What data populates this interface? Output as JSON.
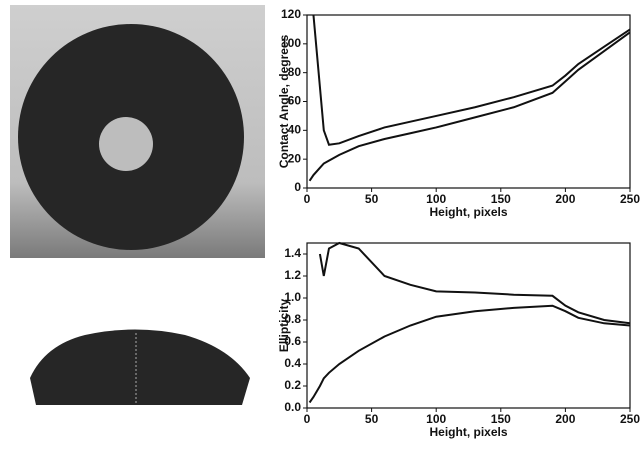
{
  "chart_data": [
    {
      "type": "line",
      "x_label": "Height, pixels",
      "y_label": "Contact Angle, degrees",
      "x": [
        2,
        5,
        10,
        13,
        17,
        25,
        40,
        60,
        80,
        100,
        130,
        160,
        190,
        200,
        210,
        230,
        250
      ],
      "series": [
        {
          "color": "#111111",
          "values": [
            null,
            120,
            70,
            40,
            30,
            31,
            36,
            42,
            46,
            50,
            56,
            63,
            71,
            78,
            86,
            98,
            110
          ]
        },
        {
          "color": "#111111",
          "values": [
            5,
            9,
            14,
            17,
            19,
            23,
            29,
            34,
            38,
            42,
            49,
            56,
            66,
            74,
            82,
            95,
            108
          ]
        }
      ],
      "xlim": [
        0,
        250
      ],
      "xticks": [
        0,
        50,
        100,
        150,
        200,
        250
      ],
      "ylim": [
        0,
        120
      ],
      "yticks": [
        0,
        20,
        40,
        60,
        80,
        100,
        120
      ]
    },
    {
      "type": "line",
      "x_label": "Height, pixels",
      "y_label": "Ellipticity",
      "x": [
        2,
        5,
        10,
        13,
        17,
        25,
        40,
        60,
        80,
        100,
        130,
        160,
        190,
        200,
        210,
        230,
        250
      ],
      "series": [
        {
          "color": "#111111",
          "values": [
            null,
            null,
            1.4,
            1.2,
            1.45,
            1.5,
            1.45,
            1.2,
            1.12,
            1.06,
            1.05,
            1.03,
            1.02,
            0.93,
            0.87,
            0.8,
            0.77
          ]
        },
        {
          "color": "#111111",
          "values": [
            0.05,
            0.1,
            0.2,
            0.27,
            0.32,
            0.4,
            0.52,
            0.65,
            0.75,
            0.83,
            0.88,
            0.91,
            0.93,
            0.88,
            0.82,
            0.77,
            0.75
          ]
        }
      ],
      "xlim": [
        0,
        250
      ],
      "xticks": [
        0,
        50,
        100,
        150,
        200,
        250
      ],
      "ylim": [
        0,
        1.5
      ],
      "yticks": [
        {
          "value": 0,
          "label": "0.0"
        },
        {
          "value": 0.2,
          "label": "0.2"
        },
        {
          "value": 0.4,
          "label": "0.4"
        },
        {
          "value": 0.6,
          "label": "0.6"
        },
        {
          "value": 0.8,
          "label": "0.8"
        },
        {
          "value": 1,
          "label": "1.0"
        },
        {
          "value": 1.2,
          "label": "1.2"
        },
        {
          "value": 1.4,
          "label": "1.4"
        }
      ]
    }
  ]
}
